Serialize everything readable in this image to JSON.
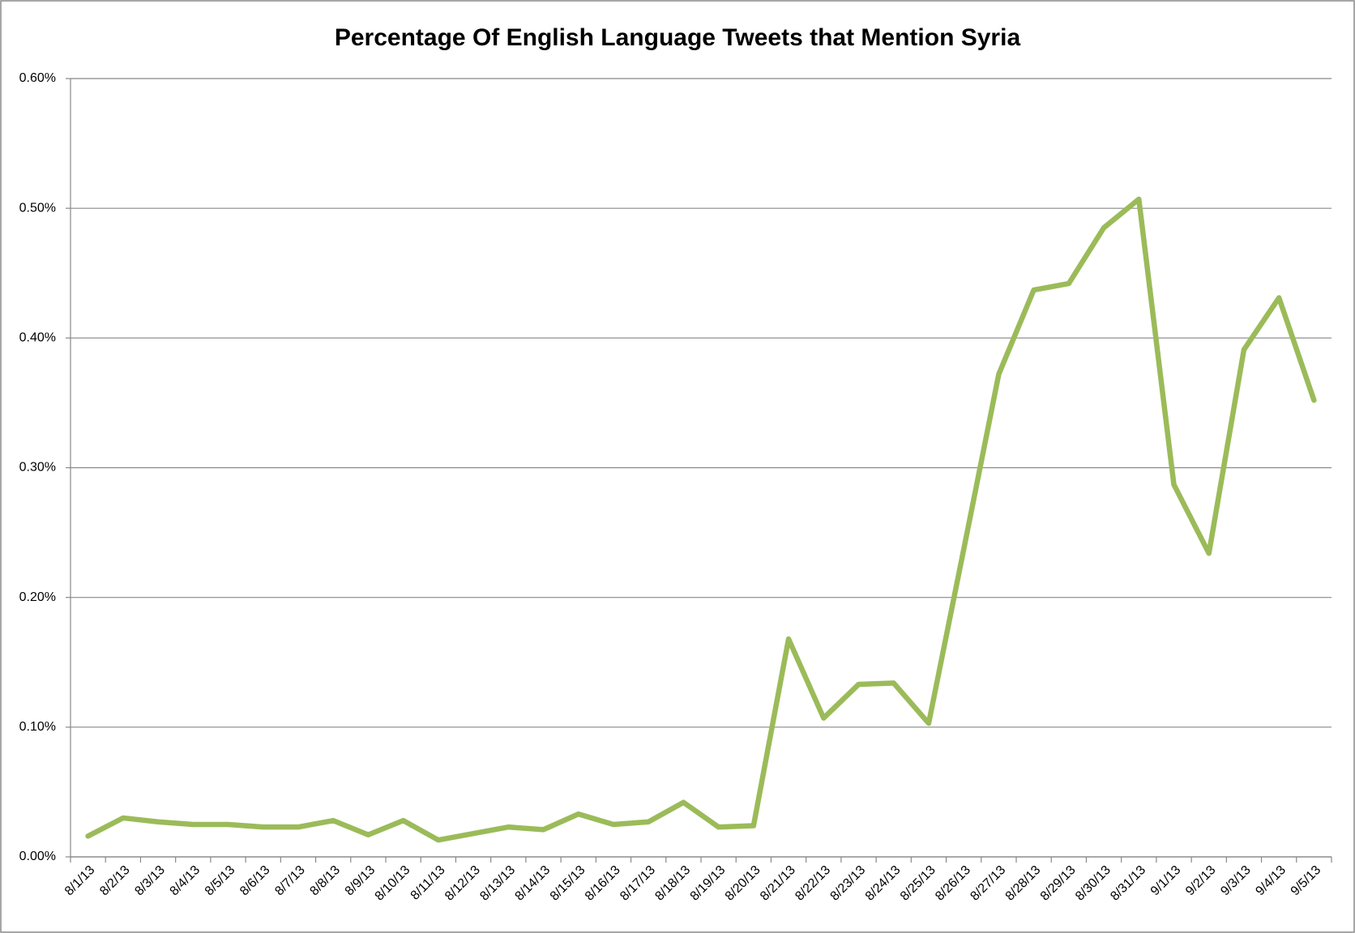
{
  "chart_data": {
    "type": "line",
    "title": "Percentage Of English Language Tweets that Mention Syria",
    "categories": [
      "8/1/13",
      "8/2/13",
      "8/3/13",
      "8/4/13",
      "8/5/13",
      "8/6/13",
      "8/7/13",
      "8/8/13",
      "8/9/13",
      "8/10/13",
      "8/11/13",
      "8/12/13",
      "8/13/13",
      "8/14/13",
      "8/15/13",
      "8/16/13",
      "8/17/13",
      "8/18/13",
      "8/19/13",
      "8/20/13",
      "8/21/13",
      "8/22/13",
      "8/23/13",
      "8/24/13",
      "8/25/13",
      "8/26/13",
      "8/27/13",
      "8/28/13",
      "8/29/13",
      "8/30/13",
      "8/31/13",
      "9/1/13",
      "9/2/13",
      "9/3/13",
      "9/4/13",
      "9/5/13"
    ],
    "values": [
      0.016,
      0.03,
      0.027,
      0.025,
      0.025,
      0.023,
      0.023,
      0.028,
      0.017,
      0.028,
      0.013,
      0.018,
      0.023,
      0.021,
      0.033,
      0.025,
      0.027,
      0.042,
      0.023,
      0.024,
      0.168,
      0.107,
      0.133,
      0.134,
      0.103,
      0.237,
      0.372,
      0.437,
      0.442,
      0.485,
      0.507,
      0.287,
      0.234,
      0.391,
      0.431,
      0.352
    ],
    "color": "#9bbb59",
    "ylim": [
      0,
      0.6
    ],
    "yticks": [
      {
        "value": 0,
        "label": "0.00%"
      },
      {
        "value": 0.1,
        "label": "0.10%"
      },
      {
        "value": 0.2,
        "label": "0.20%"
      },
      {
        "value": 0.3,
        "label": "0.30%"
      },
      {
        "value": 0.4,
        "label": "0.40%"
      },
      {
        "value": 0.5,
        "label": "0.50%"
      },
      {
        "value": 0.6,
        "label": "0.60%"
      }
    ],
    "grid": true
  }
}
